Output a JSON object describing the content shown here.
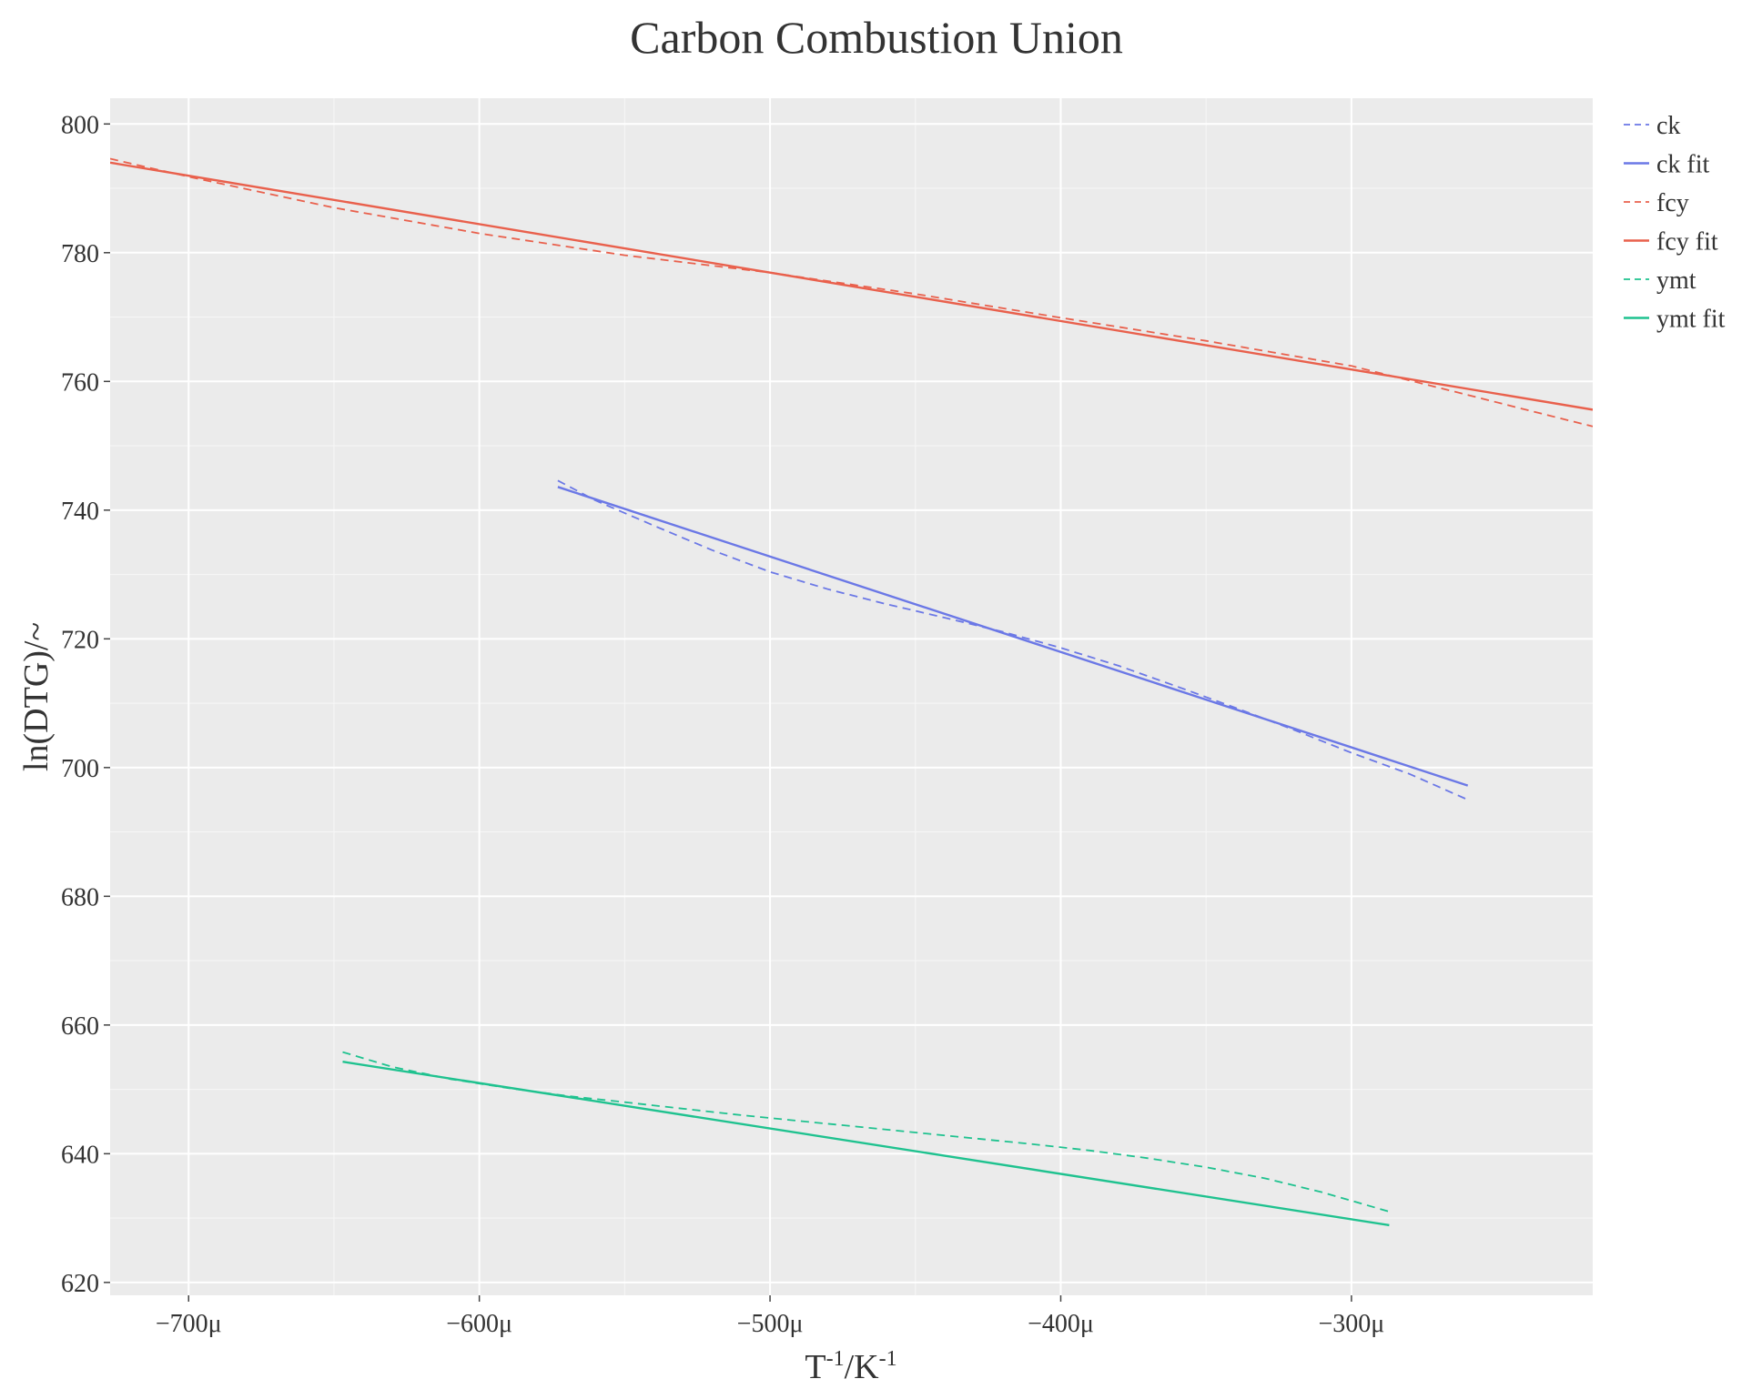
{
  "chart_data": {
    "type": "line",
    "title": "Carbon Combustion Union",
    "xlabel": {
      "base1": "T",
      "sup1": "-1",
      "sep": "/K",
      "sup2": "-1"
    },
    "ylabel": "ln(DTG)/~",
    "xlim": [
      -727,
      -217
    ],
    "ylim": [
      618,
      804
    ],
    "x_ticks": [
      {
        "value": -700,
        "label": "−700μ"
      },
      {
        "value": -600,
        "label": "−600μ"
      },
      {
        "value": -500,
        "label": "−500μ"
      },
      {
        "value": -400,
        "label": "−400μ"
      },
      {
        "value": -300,
        "label": "−300μ"
      }
    ],
    "y_ticks": [
      {
        "value": 620,
        "label": "620"
      },
      {
        "value": 640,
        "label": "640"
      },
      {
        "value": 660,
        "label": "660"
      },
      {
        "value": 680,
        "label": "680"
      },
      {
        "value": 700,
        "label": "700"
      },
      {
        "value": 720,
        "label": "720"
      },
      {
        "value": 740,
        "label": "740"
      },
      {
        "value": 760,
        "label": "760"
      },
      {
        "value": 780,
        "label": "780"
      },
      {
        "value": 800,
        "label": "800"
      }
    ],
    "grid": true,
    "legend_position": "right",
    "series": [
      {
        "name": "ck",
        "color": "#6b78e6",
        "dash": true,
        "x": [
          -573,
          -560,
          -540,
          -520,
          -500,
          -480,
          -460,
          -440,
          -420,
          -400,
          -380,
          -360,
          -340,
          -320,
          -300,
          -280,
          -260
        ],
        "y": [
          744.6,
          741.5,
          737.6,
          733.8,
          730.4,
          727.7,
          725.4,
          723.3,
          721.1,
          718.6,
          715.8,
          712.6,
          709.3,
          705.9,
          702.3,
          699.0,
          695.0
        ]
      },
      {
        "name": "ck fit",
        "color": "#6b78e6",
        "dash": false,
        "x": [
          -573,
          -260
        ],
        "y": [
          743.6,
          697.2
        ]
      },
      {
        "name": "fcy",
        "color": "#e9604c",
        "dash": true,
        "x": [
          -727,
          -700,
          -650,
          -600,
          -550,
          -500,
          -450,
          -400,
          -350,
          -300,
          -260,
          -240,
          -217
        ],
        "y": [
          794.6,
          791.8,
          787.0,
          783.0,
          779.6,
          776.9,
          773.6,
          769.9,
          766.3,
          762.4,
          757.9,
          755.6,
          753.0
        ]
      },
      {
        "name": "fcy fit",
        "color": "#e9604c",
        "dash": false,
        "x": [
          -727,
          -217
        ],
        "y": [
          794.0,
          755.6
        ]
      },
      {
        "name": "ymt",
        "color": "#1fc28f",
        "dash": true,
        "x": [
          -647,
          -630,
          -610,
          -590,
          -570,
          -550,
          -530,
          -510,
          -490,
          -470,
          -450,
          -430,
          -410,
          -390,
          -370,
          -350,
          -330,
          -310,
          -287
        ],
        "y": [
          655.8,
          653.5,
          651.6,
          650.2,
          649.0,
          648.0,
          647.0,
          646.0,
          645.1,
          644.2,
          643.3,
          642.4,
          641.5,
          640.5,
          639.3,
          637.9,
          636.2,
          634.0,
          631.0
        ]
      },
      {
        "name": "ymt fit",
        "color": "#1fc28f",
        "dash": false,
        "x": [
          -647,
          -287
        ],
        "y": [
          654.3,
          628.9
        ]
      }
    ]
  }
}
